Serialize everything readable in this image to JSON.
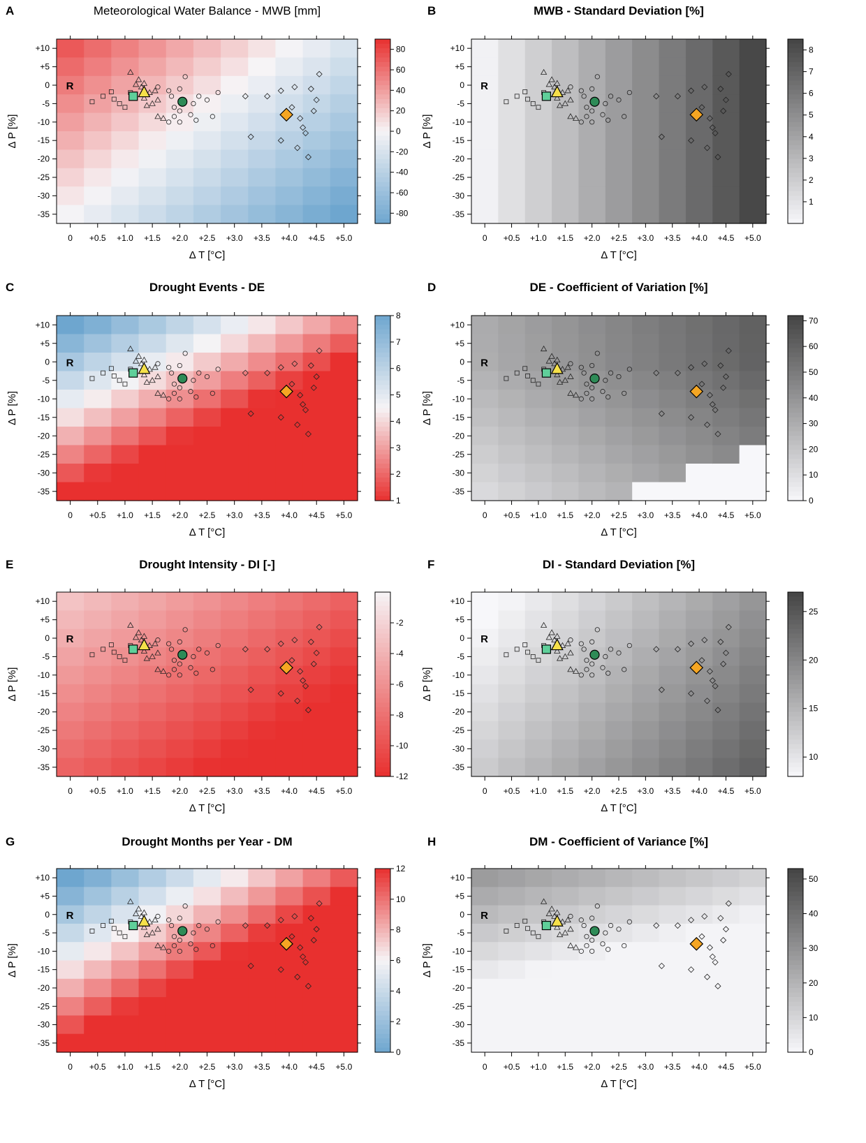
{
  "figure": {
    "x_ticks": [
      "0",
      "+0.5",
      "+1.0",
      "+1.5",
      "+2.0",
      "+2.5",
      "+3.0",
      "+3.5",
      "+4.0",
      "+4.5",
      "+5.0"
    ],
    "y_ticks": [
      "+10",
      "+5",
      "0",
      "-5",
      "-10",
      "-15",
      "-20",
      "-25",
      "-30",
      "-35"
    ],
    "xlabel": "Δ T [°C]",
    "ylabel": "Δ P [%]",
    "ref_label": "R",
    "colors": {
      "red": "#e8302f",
      "white": "#f6f4f6",
      "blue": "#6ea6cf",
      "dark_grey": "#444444",
      "light_grey": "#f7f7fa",
      "marker_green": "#2e8b57",
      "marker_yellow": "#f5e04a",
      "marker_orange": "#f5a623",
      "marker_teal": "#5fcf9a"
    }
  },
  "chart_data": [
    {
      "letter": "A",
      "type": "heatmap",
      "title": "Meteorological Water Balance - MWB [mm]",
      "bold": false,
      "scale": "diverging",
      "lim": [
        -90,
        90
      ],
      "colorbar_ticks": [
        "80",
        "60",
        "40",
        "20",
        "0",
        "-20",
        "-40",
        "-60",
        "-80"
      ],
      "colorbar_tick_values": [
        80,
        60,
        40,
        20,
        0,
        -20,
        -40,
        -60,
        -80
      ]
    },
    {
      "letter": "B",
      "type": "heatmap",
      "title": "MWB - Standard Deviation [%]",
      "bold": true,
      "scale": "grey",
      "lim": [
        0,
        8.5
      ],
      "colorbar_ticks": [
        "8",
        "7",
        "6",
        "5",
        "4",
        "3",
        "2",
        "1"
      ],
      "colorbar_tick_values": [
        8,
        7,
        6,
        5,
        4,
        3,
        2,
        1
      ]
    },
    {
      "letter": "C",
      "type": "heatmap",
      "title": "Drought Events - DE",
      "bold": true,
      "scale": "diverging_inv",
      "lim": [
        1,
        8
      ],
      "colorbar_ticks": [
        "8",
        "7",
        "6",
        "5",
        "4",
        "3",
        "2",
        "1"
      ],
      "colorbar_tick_values": [
        8,
        7,
        6,
        5,
        4,
        3,
        2,
        1
      ]
    },
    {
      "letter": "D",
      "type": "heatmap",
      "title": "DE - Coefficient of Variation [%]",
      "bold": true,
      "scale": "grey",
      "lim": [
        0,
        72
      ],
      "colorbar_ticks": [
        "70",
        "60",
        "50",
        "40",
        "30",
        "20",
        "10",
        "0"
      ],
      "colorbar_tick_values": [
        70,
        60,
        50,
        40,
        30,
        20,
        10,
        0
      ]
    },
    {
      "letter": "E",
      "type": "heatmap",
      "title": "Drought Intensity - DI [-]",
      "bold": true,
      "scale": "red_white",
      "lim": [
        -12,
        0
      ],
      "colorbar_ticks": [
        "-2",
        "-4",
        "-6",
        "-8",
        "-10",
        "-12"
      ],
      "colorbar_tick_values": [
        -2,
        -4,
        -6,
        -8,
        -10,
        -12
      ]
    },
    {
      "letter": "F",
      "type": "heatmap",
      "title": "DI - Standard Deviation [%]",
      "bold": true,
      "scale": "grey",
      "lim": [
        8,
        27
      ],
      "colorbar_ticks": [
        "25",
        "20",
        "15",
        "10"
      ],
      "colorbar_tick_values": [
        25,
        20,
        15,
        10
      ]
    },
    {
      "letter": "G",
      "type": "heatmap",
      "title": "Drought Months per Year - DM",
      "bold": true,
      "scale": "diverging",
      "lim": [
        0,
        12
      ],
      "colorbar_ticks": [
        "12",
        "10",
        "8",
        "6",
        "4",
        "2",
        "0"
      ],
      "colorbar_tick_values": [
        12,
        10,
        8,
        6,
        4,
        2,
        0
      ]
    },
    {
      "letter": "H",
      "type": "heatmap",
      "title": "DM - Coefficient of Variance [%]",
      "bold": true,
      "scale": "grey",
      "lim": [
        0,
        53
      ],
      "colorbar_ticks": [
        "50",
        "40",
        "30",
        "20",
        "10",
        "0"
      ],
      "colorbar_tick_values": [
        50,
        40,
        30,
        20,
        10,
        0
      ]
    }
  ],
  "markers": {
    "squares": [
      [
        0.4,
        -4.5
      ],
      [
        0.6,
        -3
      ],
      [
        0.75,
        -1.8
      ],
      [
        0.8,
        -3.8
      ],
      [
        0.9,
        -5
      ],
      [
        1.0,
        -6
      ],
      [
        1.1,
        -2
      ]
    ],
    "triangles": [
      [
        1.1,
        3.5
      ],
      [
        1.25,
        1.5
      ],
      [
        1.3,
        -0.5
      ],
      [
        1.35,
        -3.5
      ],
      [
        1.4,
        -5.5
      ],
      [
        1.5,
        -5
      ],
      [
        1.6,
        -4
      ],
      [
        1.45,
        -2
      ],
      [
        1.6,
        -8.5
      ],
      [
        1.7,
        -9
      ],
      [
        1.2,
        0.2
      ],
      [
        1.35,
        0.5
      ],
      [
        1.55,
        -1.5
      ]
    ],
    "circles": [
      [
        1.6,
        -0.5
      ],
      [
        1.8,
        -1.5
      ],
      [
        1.85,
        -3
      ],
      [
        1.9,
        -6
      ],
      [
        2.0,
        -7
      ],
      [
        2.2,
        -8
      ],
      [
        2.25,
        -5
      ],
      [
        2.35,
        -3
      ],
      [
        2.5,
        -4
      ],
      [
        2.7,
        -2
      ],
      [
        2.1,
        2.3
      ],
      [
        2.0,
        -10
      ],
      [
        1.8,
        -10
      ],
      [
        2.0,
        -1
      ],
      [
        2.3,
        -9.5
      ],
      [
        2.6,
        -8.5
      ],
      [
        1.9,
        -8.5
      ]
    ],
    "diamonds": [
      [
        3.2,
        -3
      ],
      [
        3.6,
        -3
      ],
      [
        3.85,
        -1.5
      ],
      [
        4.1,
        -0.5
      ],
      [
        4.4,
        -1
      ],
      [
        4.55,
        3
      ],
      [
        4.5,
        -4
      ],
      [
        4.45,
        -7
      ],
      [
        4.2,
        -9
      ],
      [
        4.25,
        -11.5
      ],
      [
        4.3,
        -13
      ],
      [
        3.85,
        -15
      ],
      [
        4.15,
        -17
      ],
      [
        4.35,
        -19.5
      ],
      [
        3.3,
        -14
      ],
      [
        4.05,
        -6
      ]
    ],
    "highlights": [
      {
        "shape": "square",
        "x": 1.15,
        "y": -3.0,
        "color": "#5fcf9a"
      },
      {
        "shape": "triangle",
        "x": 1.35,
        "y": -2.0,
        "color": "#f5e04a"
      },
      {
        "shape": "circle",
        "x": 2.05,
        "y": -4.5,
        "color": "#2e8b57"
      },
      {
        "shape": "diamond",
        "x": 3.95,
        "y": -8.0,
        "color": "#f5a623"
      }
    ]
  }
}
